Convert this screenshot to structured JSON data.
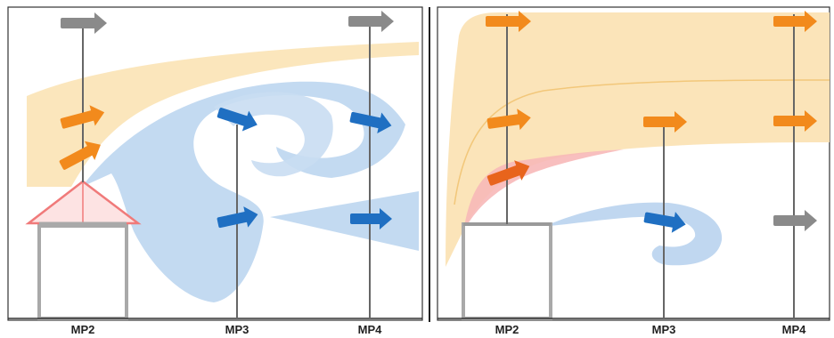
{
  "colors": {
    "speedup_zone": "#fbe3b5",
    "speedup_line": "#f2c77a",
    "recirculation": "#b9d3ee",
    "recirculation_edge": "#8fb6e0",
    "arrow_orange": "#f28a1c",
    "arrow_orange_dark": "#e8641c",
    "arrow_blue": "#1f6fc2",
    "arrow_gray": "#8a8a8a",
    "roof_red": "#f07a7a",
    "roof_fill": "#fde3e3",
    "building": "#a9a9a9",
    "mast": "#666666",
    "ground": "#333333"
  },
  "panels": [
    {
      "name": "left",
      "measurement_points": [
        {
          "label": "MP2"
        },
        {
          "label": "MP3"
        },
        {
          "label": "MP4"
        }
      ],
      "arrows": [
        {
          "point": "MP2",
          "level": "top",
          "color": "gray"
        },
        {
          "point": "MP2",
          "level": "upper",
          "color": "orange"
        },
        {
          "point": "MP2",
          "level": "lower",
          "color": "orange"
        },
        {
          "point": "MP3",
          "level": "upper",
          "color": "blue"
        },
        {
          "point": "MP3",
          "level": "lower",
          "color": "blue"
        },
        {
          "point": "MP4",
          "level": "top",
          "color": "gray"
        },
        {
          "point": "MP4",
          "level": "upper",
          "color": "blue"
        },
        {
          "point": "MP4",
          "level": "lower",
          "color": "blue"
        }
      ]
    },
    {
      "name": "right",
      "measurement_points": [
        {
          "label": "MP2"
        },
        {
          "label": "MP3"
        },
        {
          "label": "MP4"
        }
      ],
      "arrows": [
        {
          "point": "MP2",
          "level": "top",
          "color": "orange"
        },
        {
          "point": "MP2",
          "level": "upper",
          "color": "orange"
        },
        {
          "point": "MP2",
          "level": "lower",
          "color": "orange-red"
        },
        {
          "point": "MP3",
          "level": "upper",
          "color": "orange"
        },
        {
          "point": "MP3",
          "level": "lower",
          "color": "blue"
        },
        {
          "point": "MP4",
          "level": "top",
          "color": "orange"
        },
        {
          "point": "MP4",
          "level": "upper",
          "color": "orange"
        },
        {
          "point": "MP4",
          "level": "lower",
          "color": "gray"
        }
      ]
    }
  ]
}
